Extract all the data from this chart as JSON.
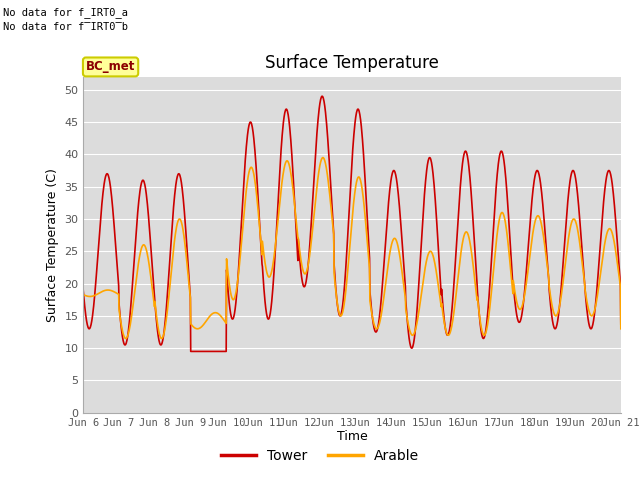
{
  "title": "Surface Temperature",
  "xlabel": "Time",
  "ylabel": "Surface Temperature (C)",
  "ylim": [
    0,
    52
  ],
  "yticks": [
    0,
    5,
    10,
    15,
    20,
    25,
    30,
    35,
    40,
    45,
    50
  ],
  "bg_color": "#dcdcdc",
  "tower_color": "#cc0000",
  "arable_color": "#ffa500",
  "line_width": 1.2,
  "no_data_text1": "No data for f_IRT0_a",
  "no_data_text2": "No data for f̅IRT0̅b",
  "bc_met_label": "BC_met",
  "legend_tower": "Tower",
  "legend_arable": "Arable",
  "x_tick_labels": [
    "Jun 6",
    "Jun 7",
    "Jun 8",
    "Jun 9",
    "Jun 10",
    "Jun 11",
    "Jun 12",
    "Jun 13",
    "Jun 14",
    "Jun 15",
    "Jun 16",
    "Jun 17",
    "Jun 18",
    "Jun 19",
    "Jun 20",
    "Jun 21"
  ],
  "x_tick_positions": [
    0,
    24,
    48,
    72,
    96,
    120,
    144,
    168,
    192,
    216,
    240,
    264,
    288,
    312,
    336,
    360
  ],
  "tower_day_peaks": [
    37,
    36,
    37,
    9.5,
    45,
    47,
    49,
    47,
    37.5,
    39.5,
    40.5,
    40.5,
    37.5,
    37.5,
    37.5,
    13
  ],
  "tower_night_mins": [
    13,
    10.5,
    10.5,
    9.5,
    14.5,
    14.5,
    19.5,
    15,
    12.5,
    10,
    12,
    11.5,
    14,
    13,
    13,
    14
  ],
  "arable_day_peaks": [
    19,
    26,
    30,
    15.5,
    38,
    39,
    39.5,
    36.5,
    27,
    25,
    28,
    31,
    30.5,
    30,
    28.5,
    13
  ],
  "arable_night_mins": [
    18,
    11.5,
    11.5,
    13,
    17.5,
    21,
    21.5,
    15,
    13,
    12,
    12,
    12,
    16,
    15,
    15,
    13
  ]
}
